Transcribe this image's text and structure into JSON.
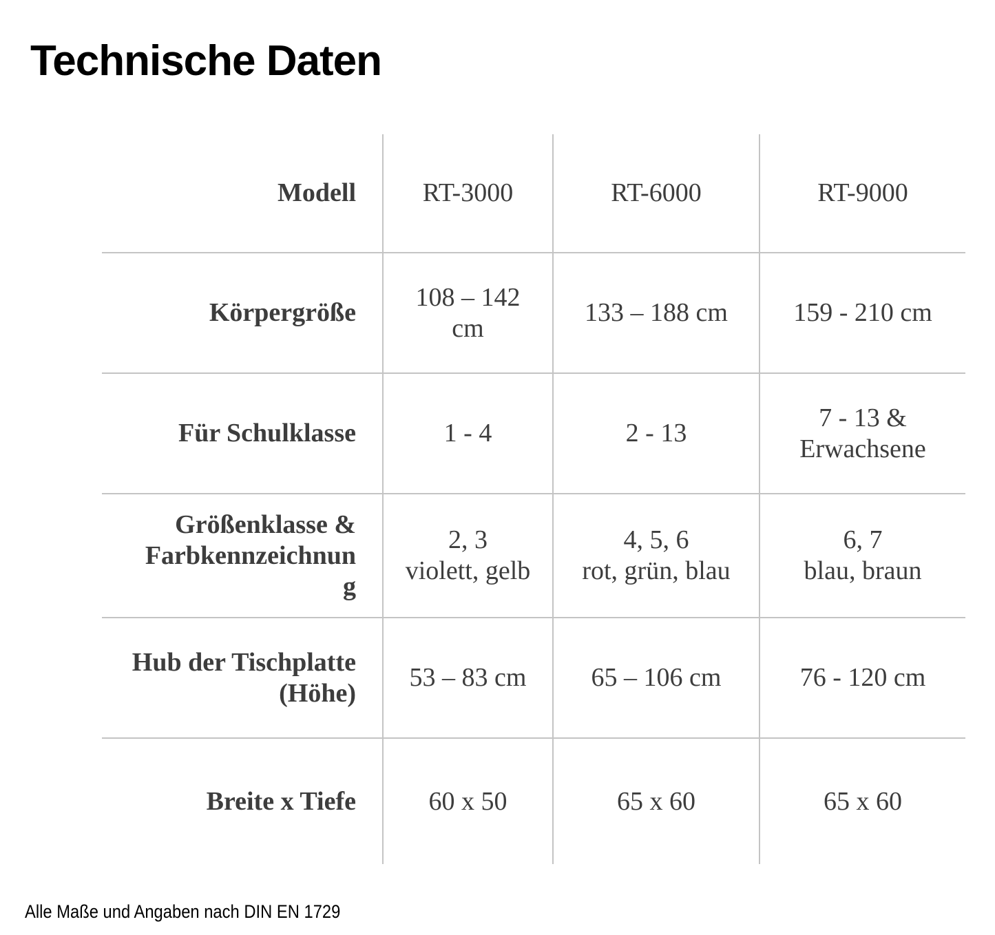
{
  "title": "Technische Daten",
  "footer_note": "Alle Maße und Angaben nach DIN EN 1729",
  "colors": {
    "title": "#000000",
    "text": "#3d3d3d",
    "grid": "#c4c4c4"
  },
  "table": {
    "header": {
      "label": "Modell",
      "columns": [
        "RT-3000",
        "RT-6000",
        "RT-9000"
      ]
    },
    "rows": [
      {
        "label": "Körpergröße",
        "values": [
          "108 – 142\ncm",
          "133 – 188 cm",
          "159 - 210 cm"
        ]
      },
      {
        "label": "Für Schulklasse",
        "values": [
          "1 - 4",
          "2 - 13",
          "7 - 13 &\nErwachsene"
        ]
      },
      {
        "label": "Größenklasse &\nFarbkennzeichnun\ng",
        "values": [
          "2, 3\nviolett, gelb",
          "4, 5, 6\nrot, grün, blau",
          "6, 7\nblau, braun"
        ]
      },
      {
        "label": "Hub der Tischplatte\n(Höhe)",
        "values": [
          "53 – 83 cm",
          "65 – 106 cm",
          "76 - 120 cm"
        ]
      },
      {
        "label": "Breite x Tiefe",
        "values": [
          "60 x 50",
          "65 x 60",
          "65 x 60"
        ]
      }
    ]
  }
}
